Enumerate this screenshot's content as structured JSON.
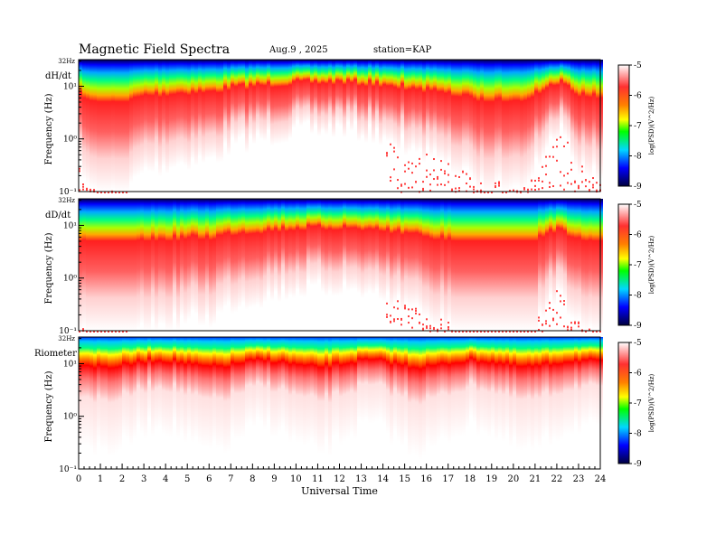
{
  "header": {
    "title": "Magnetic  Field  Spectra",
    "date": "Aug.9  , 2025",
    "station": "station=KAP"
  },
  "chart_data": {
    "type": "heatmap",
    "title": "Magnetic  Field  Spectra",
    "xlabel": "Universal Time",
    "ylabel": "Frequency  (Hz)",
    "xlim": [
      0,
      24
    ],
    "x_ticks": [
      "0",
      "1",
      "2",
      "3",
      "4",
      "5",
      "6",
      "7",
      "8",
      "9",
      "10",
      "11",
      "12",
      "13",
      "14",
      "15",
      "16",
      "17",
      "18",
      "19",
      "20",
      "21",
      "22",
      "23",
      "24"
    ],
    "y_scale": "log",
    "ylim": [
      0.1,
      32
    ],
    "y_tick_labels": [
      "32Hz",
      "10¹",
      "10⁰",
      "10⁻¹"
    ],
    "colorbar": {
      "label": "log(PSD)(V^2/Hz)",
      "range": [
        -9,
        -5
      ],
      "ticks": [
        "-5",
        "-6",
        "-7",
        "-8",
        "-9"
      ],
      "colors": [
        "#000050",
        "#0000ff",
        "#00c8ff",
        "#00ff00",
        "#ffff00",
        "#ff0000",
        "#ffffff"
      ]
    },
    "panels": [
      {
        "name": "dH/dt"
      },
      {
        "name": "dD/dt"
      },
      {
        "name": "Riometer"
      }
    ]
  }
}
